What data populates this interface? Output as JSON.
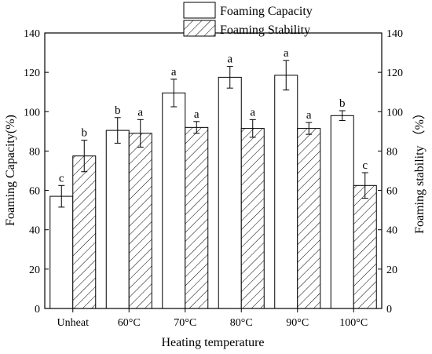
{
  "chart_data": {
    "type": "bar",
    "categories": [
      "Unheat",
      "60°C",
      "70°C",
      "80°C",
      "90°C",
      "100°C"
    ],
    "series": [
      {
        "name": "Foaming Capacity",
        "values": [
          57,
          90.5,
          109.5,
          117.5,
          118.5,
          98
        ],
        "errors": [
          5.5,
          6.5,
          7,
          5.5,
          7.5,
          2.5
        ],
        "labels": [
          "c",
          "b",
          "a",
          "a",
          "a",
          "b"
        ],
        "fill": "#ffffff",
        "pattern": "none",
        "axis": "left"
      },
      {
        "name": "Foaming Stability",
        "values": [
          77.5,
          89,
          92,
          91.5,
          91.5,
          62.5
        ],
        "errors": [
          8,
          7,
          3,
          4.5,
          3,
          6.5
        ],
        "labels": [
          "b",
          "a",
          "a",
          "a",
          "a",
          "c"
        ],
        "fill": "#ffffff",
        "pattern": "diagonal-hatch",
        "axis": "right"
      }
    ],
    "xlabel": "Heating temperature",
    "ylabel": "Foaming Capacity(%)",
    "y2label": "Foaming stability （%）",
    "ylim": [
      0,
      140
    ],
    "y2lim": [
      0,
      140
    ],
    "yticks": [
      0,
      20,
      40,
      60,
      80,
      100,
      120,
      140
    ],
    "grid": false,
    "legend_position": "top-center",
    "colors": {
      "axis": "#000000",
      "bar_stroke": "#000000",
      "hatch": "#000000"
    }
  }
}
